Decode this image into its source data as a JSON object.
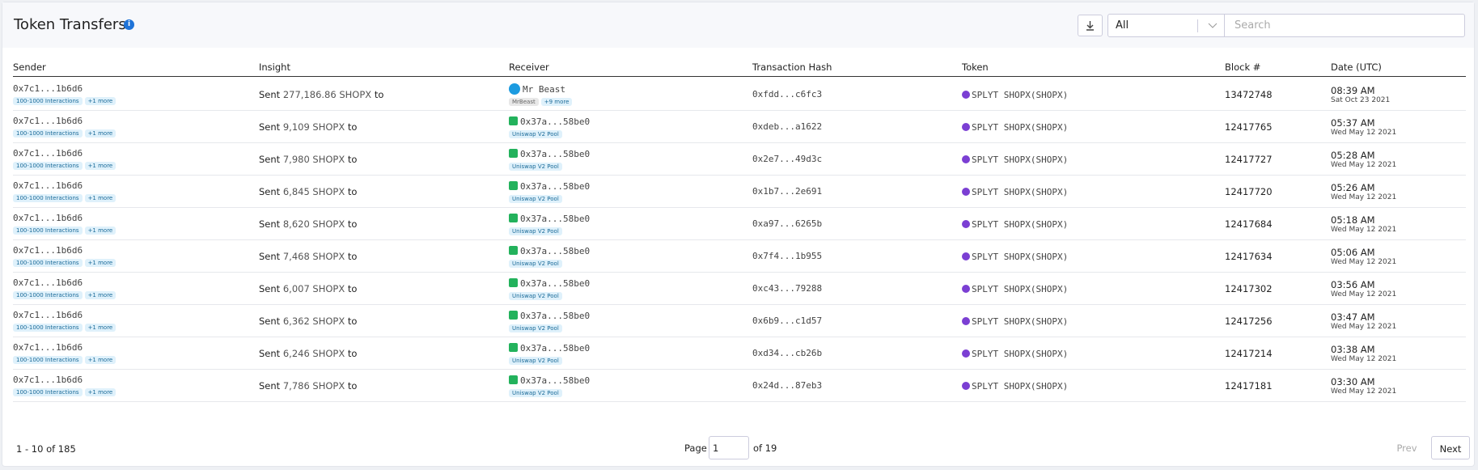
{
  "header": {
    "title": "Token Transfers",
    "filter": "All",
    "search_placeholder": "Search"
  },
  "table": {
    "columns": [
      "Sender",
      "Insight",
      "Receiver",
      "Transaction Hash",
      "Token",
      "Block #",
      "Date (UTC)"
    ],
    "rows": [
      {
        "sender": "0x7c1...1b6d6",
        "sender_tags": [
          "100-1000 Interactions",
          "+1 more"
        ],
        "action": "Sent",
        "amount": "277,186.86 SHOPX",
        "preposition": "to",
        "receiver": "Mr Beast",
        "receiver_tags": [
          "MrBeast",
          "+9 more"
        ],
        "hash": "0xfdd...c6fc3",
        "token": "SPLYT SHOPX(SHOPX)",
        "block": "13472748",
        "time": "08:39 AM",
        "date": "Sat Oct 23 2021"
      },
      {
        "sender": "0x7c1...1b6d6",
        "sender_tags": [
          "100-1000 Interactions",
          "+1 more"
        ],
        "action": "Sent",
        "amount": "9,109 SHOPX",
        "preposition": "to",
        "receiver": "0x37a...58be0",
        "receiver_tags": [
          "Uniswap V2 Pool"
        ],
        "hash": "0xdeb...a1622",
        "token": "SPLYT SHOPX(SHOPX)",
        "block": "12417765",
        "time": "05:37 AM",
        "date": "Wed May 12 2021"
      },
      {
        "sender": "0x7c1...1b6d6",
        "sender_tags": [
          "100-1000 Interactions",
          "+1 more"
        ],
        "action": "Sent",
        "amount": "7,980 SHOPX",
        "preposition": "to",
        "receiver": "0x37a...58be0",
        "receiver_tags": [
          "Uniswap V2 Pool"
        ],
        "hash": "0x2e7...49d3c",
        "token": "SPLYT SHOPX(SHOPX)",
        "block": "12417727",
        "time": "05:28 AM",
        "date": "Wed May 12 2021"
      },
      {
        "sender": "0x7c1...1b6d6",
        "sender_tags": [
          "100-1000 Interactions",
          "+1 more"
        ],
        "action": "Sent",
        "amount": "6,845 SHOPX",
        "preposition": "to",
        "receiver": "0x37a...58be0",
        "receiver_tags": [
          "Uniswap V2 Pool"
        ],
        "hash": "0x1b7...2e691",
        "token": "SPLYT SHOPX(SHOPX)",
        "block": "12417720",
        "time": "05:26 AM",
        "date": "Wed May 12 2021"
      },
      {
        "sender": "0x7c1...1b6d6",
        "sender_tags": [
          "100-1000 Interactions",
          "+1 more"
        ],
        "action": "Sent",
        "amount": "8,620 SHOPX",
        "preposition": "to",
        "receiver": "0x37a...58be0",
        "receiver_tags": [
          "Uniswap V2 Pool"
        ],
        "hash": "0xa97...6265b",
        "token": "SPLYT SHOPX(SHOPX)",
        "block": "12417684",
        "time": "05:18 AM",
        "date": "Wed May 12 2021"
      },
      {
        "sender": "0x7c1...1b6d6",
        "sender_tags": [
          "100-1000 Interactions",
          "+1 more"
        ],
        "action": "Sent",
        "amount": "7,468 SHOPX",
        "preposition": "to",
        "receiver": "0x37a...58be0",
        "receiver_tags": [
          "Uniswap V2 Pool"
        ],
        "hash": "0x7f4...1b955",
        "token": "SPLYT SHOPX(SHOPX)",
        "block": "12417634",
        "time": "05:06 AM",
        "date": "Wed May 12 2021"
      },
      {
        "sender": "0x7c1...1b6d6",
        "sender_tags": [
          "100-1000 Interactions",
          "+1 more"
        ],
        "action": "Sent",
        "amount": "6,007 SHOPX",
        "preposition": "to",
        "receiver": "0x37a...58be0",
        "receiver_tags": [
          "Uniswap V2 Pool"
        ],
        "hash": "0xc43...79288",
        "token": "SPLYT SHOPX(SHOPX)",
        "block": "12417302",
        "time": "03:56 AM",
        "date": "Wed May 12 2021"
      },
      {
        "sender": "0x7c1...1b6d6",
        "sender_tags": [
          "100-1000 Interactions",
          "+1 more"
        ],
        "action": "Sent",
        "amount": "6,362 SHOPX",
        "preposition": "to",
        "receiver": "0x37a...58be0",
        "receiver_tags": [
          "Uniswap V2 Pool"
        ],
        "hash": "0x6b9...c1d57",
        "token": "SPLYT SHOPX(SHOPX)",
        "block": "12417256",
        "time": "03:47 AM",
        "date": "Wed May 12 2021"
      },
      {
        "sender": "0x7c1...1b6d6",
        "sender_tags": [
          "100-1000 Interactions",
          "+1 more"
        ],
        "action": "Sent",
        "amount": "6,246 SHOPX",
        "preposition": "to",
        "receiver": "0x37a...58be0",
        "receiver_tags": [
          "Uniswap V2 Pool"
        ],
        "hash": "0xd34...cb26b",
        "token": "SPLYT SHOPX(SHOPX)",
        "block": "12417214",
        "time": "03:38 AM",
        "date": "Wed May 12 2021"
      },
      {
        "sender": "0x7c1...1b6d6",
        "sender_tags": [
          "100-1000 Interactions",
          "+1 more"
        ],
        "action": "Sent",
        "amount": "7,786 SHOPX",
        "preposition": "to",
        "receiver": "0x37a...58be0",
        "receiver_tags": [
          "Uniswap V2 Pool"
        ],
        "hash": "0x24d...87eb3",
        "token": "SPLYT SHOPX(SHOPX)",
        "block": "12417181",
        "time": "03:30 AM",
        "date": "Wed May 12 2021"
      }
    ]
  },
  "footer": {
    "range": "1 - 10 of 185",
    "page_label": "Page",
    "page": "1",
    "page_total": "of 19",
    "prev": "Prev",
    "next": "Next"
  }
}
